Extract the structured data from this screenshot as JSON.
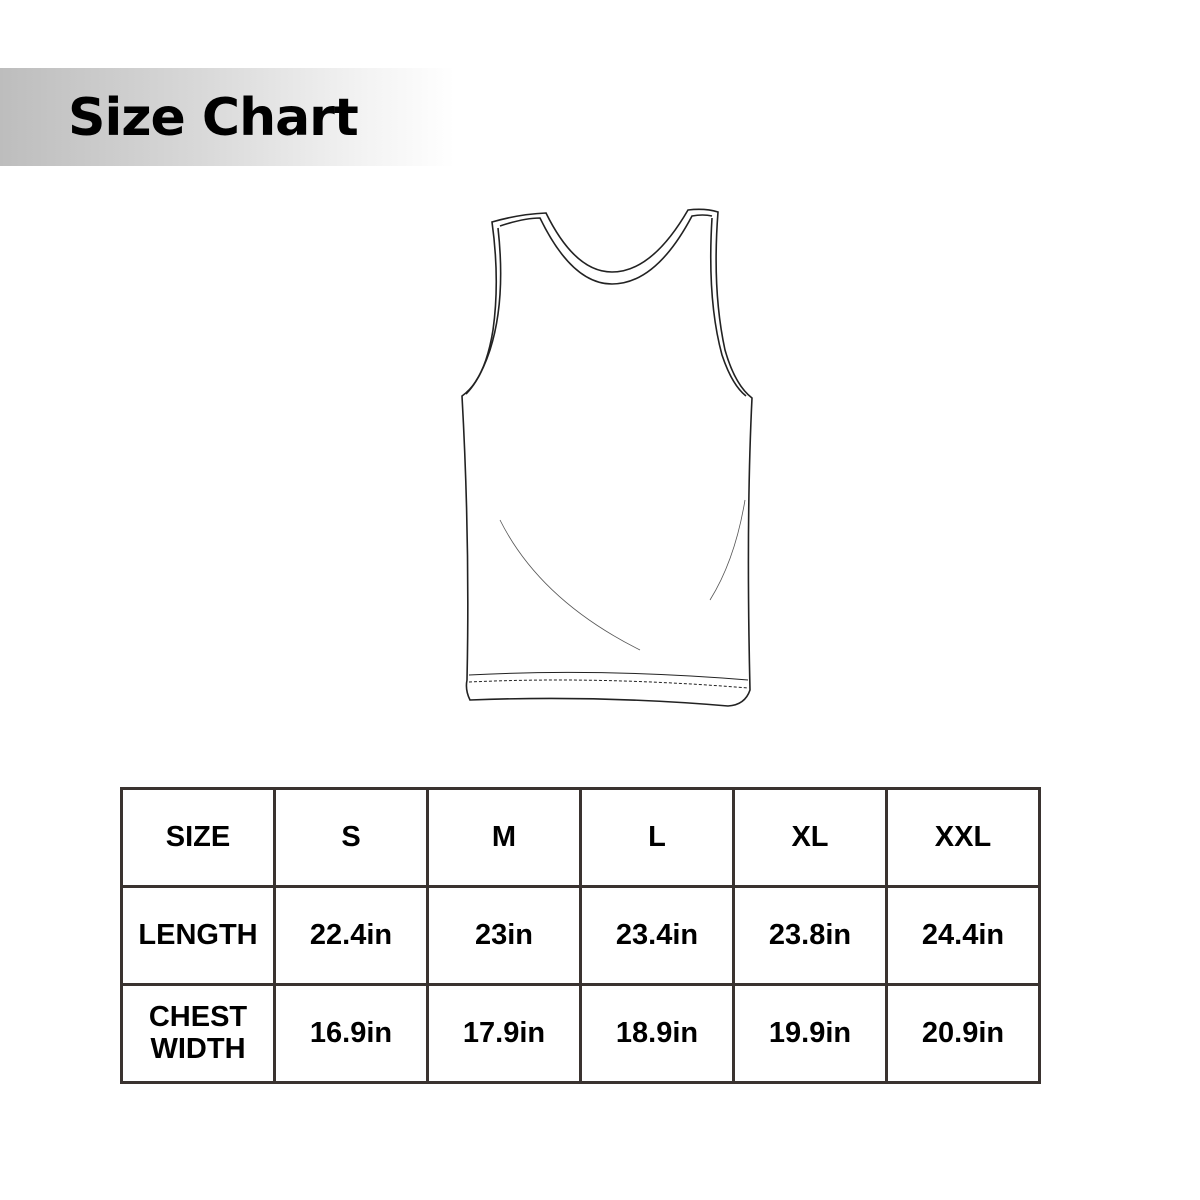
{
  "title": "Size Chart",
  "garment_illustration": "tank-top-outline",
  "table": {
    "header": [
      "SIZE",
      "S",
      "M",
      "L",
      "XL",
      "XXL"
    ],
    "rows": [
      {
        "label": "LENGTH",
        "values": [
          "22.4in",
          "23in",
          "23.4in",
          "23.8in",
          "24.4in"
        ]
      },
      {
        "label_line1": "CHEST",
        "label_line2": "WIDTH",
        "values": [
          "16.9in",
          "17.9in",
          "18.9in",
          "19.9in",
          "20.9in"
        ]
      }
    ]
  },
  "colors": {
    "border": "#3a3330",
    "text": "#000000",
    "banner_start": "#bdbdbd"
  }
}
